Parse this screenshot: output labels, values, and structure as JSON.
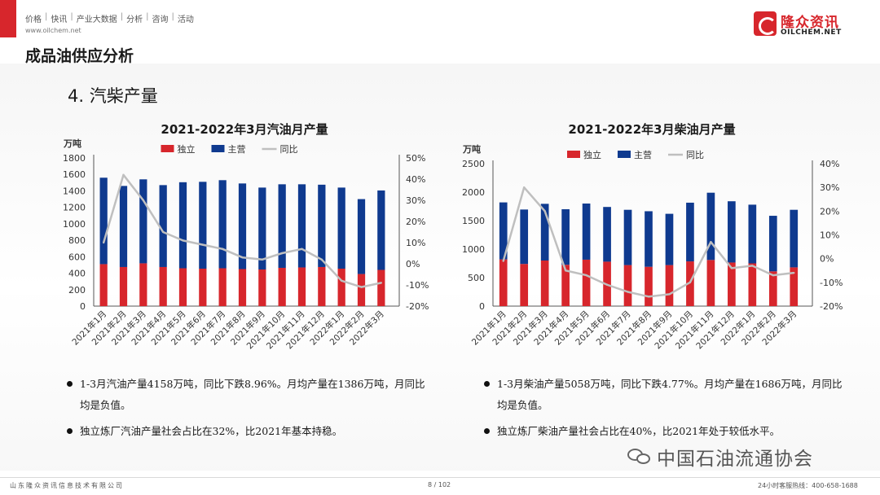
{
  "header": {
    "nav": [
      "价格",
      "快讯",
      "产业大数据",
      "分析",
      "咨询",
      "活动"
    ],
    "url": "www.oilchem.net",
    "logo_cn": "隆众资讯",
    "logo_en": "OILCHEM.NET"
  },
  "page_title": "成品油供应分析",
  "section_title": "4. 汽柴产量",
  "colors": {
    "independent": "#d7262c",
    "main": "#0f3a8f",
    "yoy": "#bfbfbf",
    "accent": "#d7262c"
  },
  "chart_data": [
    {
      "type": "bar",
      "stacked": true,
      "title": "2021-2022年3月汽油月产量",
      "unit": "万吨",
      "categories": [
        "2021年1月",
        "2021年2月",
        "2021年3月",
        "2021年4月",
        "2021年5月",
        "2021年6月",
        "2021年7月",
        "2021年8月",
        "2021年9月",
        "2021年10月",
        "2021年11月",
        "2021年12月",
        "2022年1月",
        "2022年2月",
        "2022年3月"
      ],
      "series": [
        {
          "name": "独立",
          "values": [
            510,
            475,
            520,
            475,
            460,
            455,
            460,
            450,
            445,
            465,
            470,
            475,
            455,
            390,
            440
          ]
        },
        {
          "name": "主营",
          "values": [
            1050,
            985,
            1020,
            995,
            1045,
            1055,
            1070,
            1040,
            995,
            1015,
            1010,
            1000,
            985,
            910,
            965
          ]
        },
        {
          "name": "同比",
          "axis": "right",
          "type": "line",
          "values": [
            10,
            42,
            30,
            15,
            11,
            9,
            7,
            3,
            2,
            5,
            7,
            2,
            -8,
            -11,
            -9
          ]
        }
      ],
      "ylim": [
        0,
        1800
      ],
      "yticks": [
        "0",
        "200",
        "400",
        "600",
        "800",
        "1000",
        "1200",
        "1400",
        "1600",
        "1800"
      ],
      "y2lim": [
        -20,
        50
      ],
      "y2ticks": [
        "-20%",
        "-10%",
        "0%",
        "10%",
        "20%",
        "30%",
        "40%",
        "50%"
      ],
      "legend": "top"
    },
    {
      "type": "bar",
      "stacked": true,
      "title": "2021-2022年3月柴油月产量",
      "unit": "万吨",
      "categories": [
        "2021年1月",
        "2021年2月",
        "2021年3月",
        "2021年4月",
        "2021年5月",
        "2021年6月",
        "2021年7月",
        "2021年8月",
        "2021年9月",
        "2021年10月",
        "2021年11月",
        "2021年12月",
        "2022年1月",
        "2022年2月",
        "2022年3月"
      ],
      "series": [
        {
          "name": "独立",
          "values": [
            820,
            740,
            800,
            725,
            815,
            780,
            720,
            690,
            720,
            785,
            810,
            765,
            750,
            610,
            680
          ]
        },
        {
          "name": "主营",
          "values": [
            1000,
            955,
            995,
            975,
            985,
            960,
            970,
            975,
            900,
            1030,
            1180,
            1075,
            1030,
            975,
            1010
          ]
        },
        {
          "name": "同比",
          "axis": "right",
          "type": "line",
          "values": [
            -1,
            30,
            20,
            -5,
            -7,
            -11,
            -14,
            -16,
            -15,
            -10,
            7,
            -4,
            -3,
            -7,
            -6
          ]
        }
      ],
      "ylim": [
        0,
        2500
      ],
      "yticks": [
        "0",
        "500",
        "1000",
        "1500",
        "2000",
        "2500"
      ],
      "y2lim": [
        -20,
        40
      ],
      "y2ticks": [
        "-20%",
        "-10%",
        "0%",
        "10%",
        "20%",
        "30%",
        "40%"
      ],
      "legend": "top"
    }
  ],
  "bullets_left": [
    "1-3月汽油产量4158万吨，同比下跌8.96%。月均产量在1386万吨，月同比均是负值。",
    "独立炼厂汽油产量社会占比在32%，比2021年基本持稳。"
  ],
  "bullets_right": [
    "1-3月柴油产量5058万吨，同比下跌4.77%。月均产量在1686万吨，月同比均是负值。",
    "独立炼厂柴油产量社会占比在40%，比2021年处于较低水平。"
  ],
  "wechat_text": "中国石油流通协会",
  "footer": {
    "company": "山东隆众资讯信息技术有限公司",
    "page": "8 / 102",
    "hotline": "24小时客服热线：400-658-1688"
  }
}
